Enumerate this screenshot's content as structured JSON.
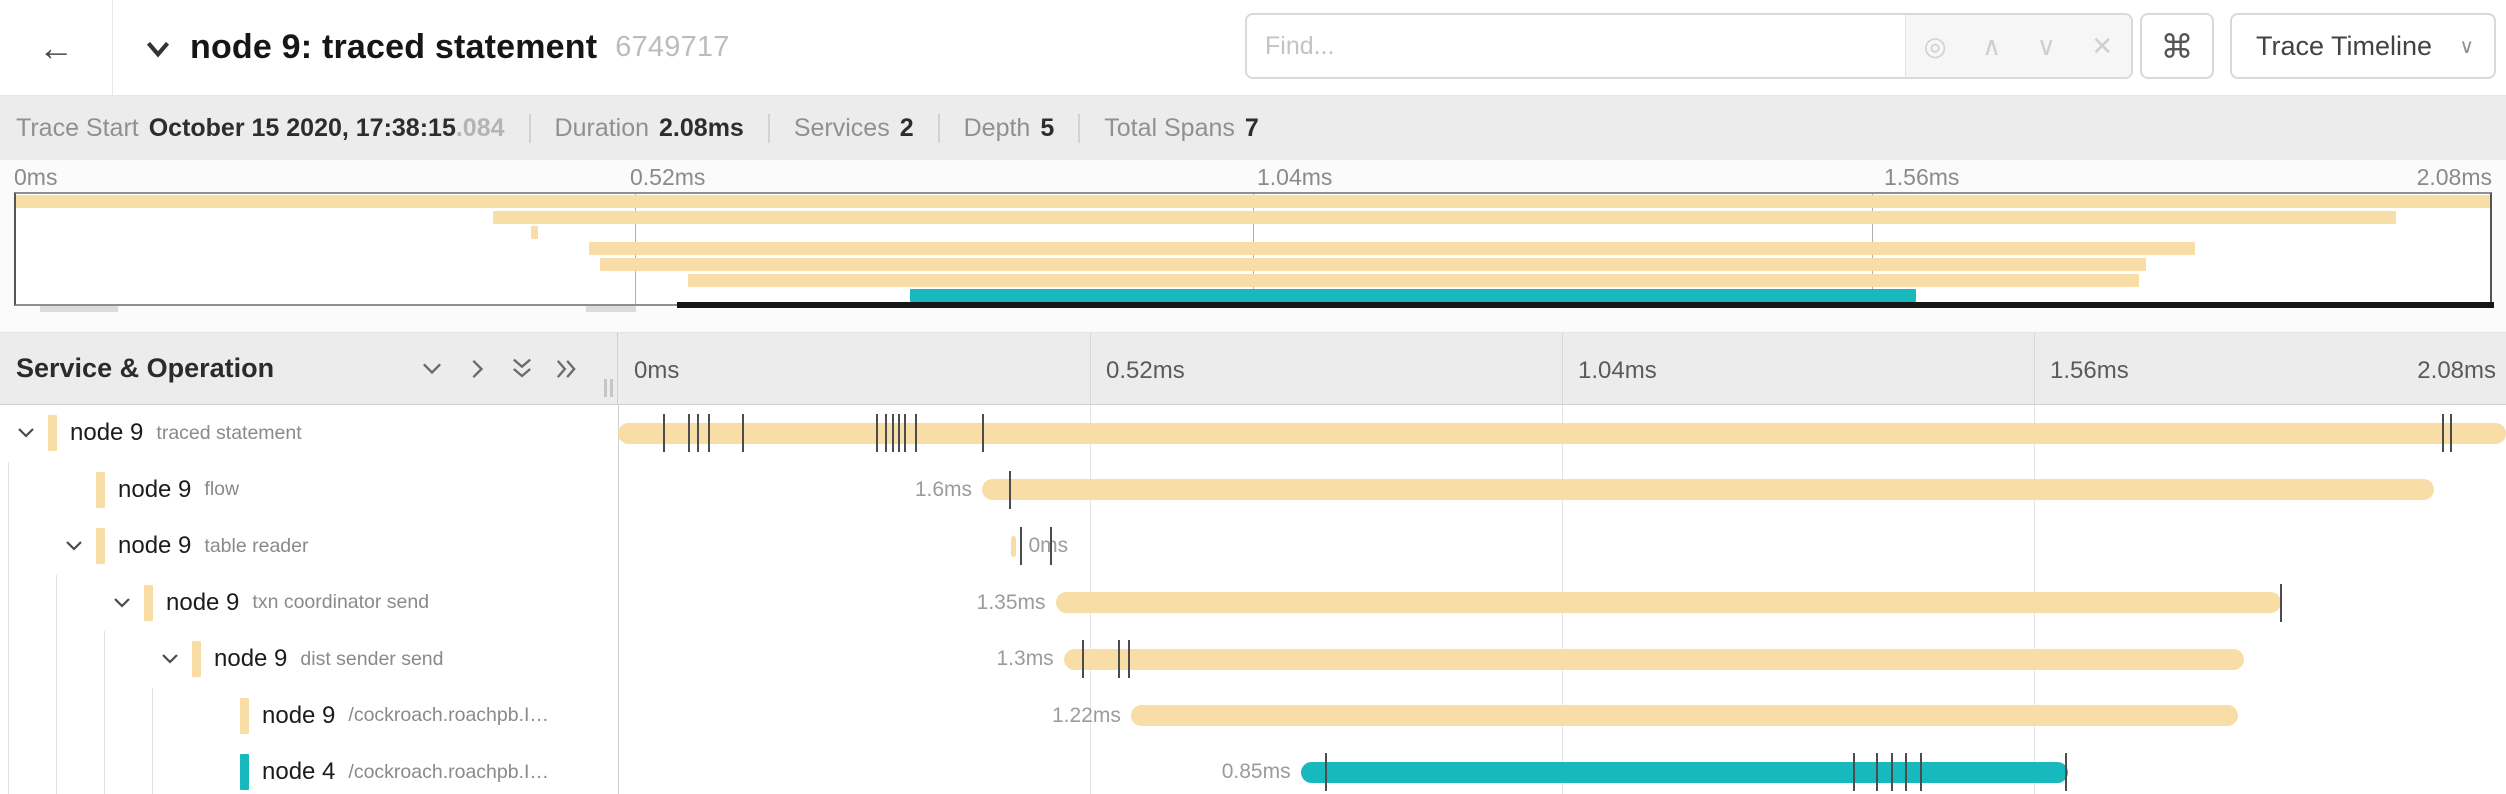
{
  "header": {
    "back_icon": "←",
    "title": "node 9: traced statement",
    "trace_id": "6749717",
    "find_placeholder": "Find...",
    "find_icons": {
      "target": "◎",
      "prev": "∧",
      "next": "∨",
      "clear": "✕"
    },
    "shortcuts_icon": "⌘",
    "view_dropdown": {
      "label": "Trace Timeline",
      "caret": "∨"
    }
  },
  "summary": {
    "items": [
      {
        "label": "Trace Start",
        "value": "October 15 2020, 17:38:15",
        "extra": ".084"
      },
      {
        "label": "Duration",
        "value": "2.08ms",
        "extra": ""
      },
      {
        "label": "Services",
        "value": "2",
        "extra": ""
      },
      {
        "label": "Depth",
        "value": "5",
        "extra": ""
      },
      {
        "label": "Total Spans",
        "value": "7",
        "extra": ""
      }
    ]
  },
  "timeline_header": {
    "title": "Service & Operation"
  },
  "colors": {
    "service_node9": "#F8DDA6",
    "service_node4": "#17B8BE"
  },
  "chart_data": {
    "type": "trace-gantt",
    "total_duration_ms": 2.08,
    "axis_ticks": [
      "0ms",
      "0.52ms",
      "1.04ms",
      "1.56ms",
      "2.08ms"
    ],
    "minimap_ticks": [
      "0ms",
      "0.52ms",
      "1.04ms",
      "1.56ms",
      "2.08ms"
    ],
    "spans": [
      {
        "service": "node 9",
        "operation": "traced statement",
        "color": "#F8DDA6",
        "depth": 0,
        "expander": true,
        "start_ms": 0,
        "duration_ms": 2.08,
        "label": "",
        "label_side": "none",
        "log_ticks_ms": [
          0.05,
          0.077,
          0.087,
          0.099,
          0.137,
          0.284,
          0.294,
          0.302,
          0.308,
          0.315,
          0.327,
          0.401,
          2.01,
          2.018
        ]
      },
      {
        "service": "node 9",
        "operation": "flow",
        "color": "#F8DDA6",
        "depth": 1,
        "expander": false,
        "start_ms": 0.401,
        "duration_ms": 1.6,
        "label": "1.6ms",
        "label_side": "left",
        "log_ticks_ms": [
          0.431
        ]
      },
      {
        "service": "node 9",
        "operation": "table reader",
        "color": "#F8DDA6",
        "depth": 1,
        "expander": true,
        "start_ms": 0.433,
        "duration_ms": 0.006,
        "label": "0ms",
        "label_side": "right",
        "log_ticks_ms": [
          0.443,
          0.476
        ]
      },
      {
        "service": "node 9",
        "operation": "txn coordinator send",
        "color": "#F8DDA6",
        "depth": 2,
        "expander": true,
        "start_ms": 0.482,
        "duration_ms": 1.35,
        "label": "1.35ms",
        "label_side": "left",
        "log_ticks_ms": [
          1.831
        ]
      },
      {
        "service": "node 9",
        "operation": "dist sender send",
        "color": "#F8DDA6",
        "depth": 3,
        "expander": true,
        "start_ms": 0.491,
        "duration_ms": 1.3,
        "label": "1.3ms",
        "label_side": "left",
        "log_ticks_ms": [
          0.511,
          0.551,
          0.562
        ]
      },
      {
        "service": "node 9",
        "operation": "/cockroach.roachpb.I…",
        "color": "#F8DDA6",
        "depth": 4,
        "expander": false,
        "start_ms": 0.565,
        "duration_ms": 1.22,
        "label": "1.22ms",
        "label_side": "left",
        "log_ticks_ms": []
      },
      {
        "service": "node 4",
        "operation": "/cockroach.roachpb.I…",
        "color": "#17B8BE",
        "depth": 4,
        "expander": false,
        "start_ms": 0.752,
        "duration_ms": 0.845,
        "label": "0.85ms",
        "label_side": "left",
        "log_ticks_ms": [
          0.779,
          1.361,
          1.386,
          1.402,
          1.418,
          1.434,
          1.594
        ]
      }
    ]
  }
}
